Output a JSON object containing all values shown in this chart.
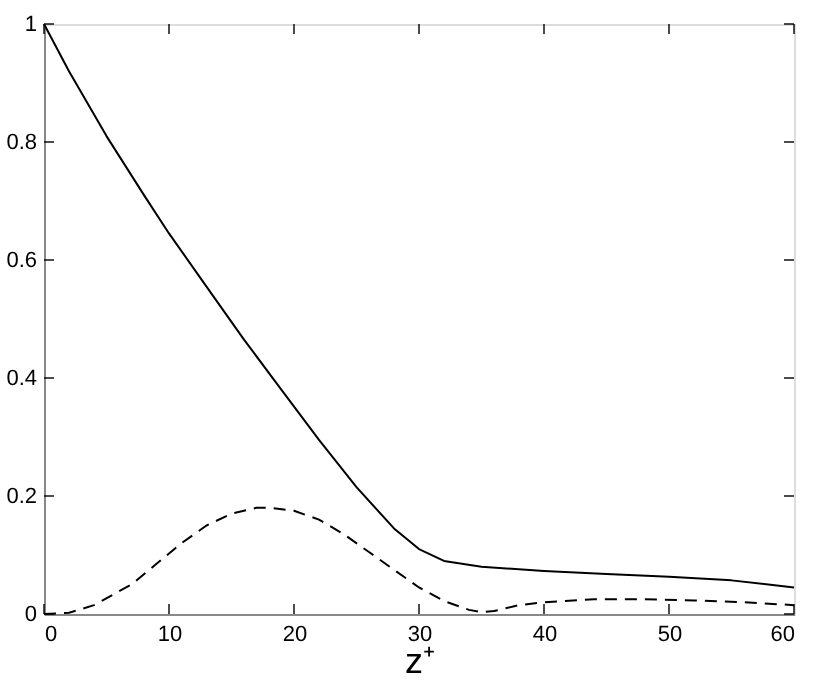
{
  "chart_data": {
    "type": "line",
    "xlabel": "z⁺",
    "xlim": [
      0,
      60
    ],
    "ylim": [
      0,
      1
    ],
    "xticks": [
      0,
      10,
      20,
      30,
      40,
      50,
      60
    ],
    "yticks": [
      0,
      0.2,
      0.4,
      0.6,
      0.8,
      1
    ],
    "grid": false,
    "marker": "none",
    "series": [
      {
        "color": "#000000",
        "line_style": "solid",
        "x": [
          0,
          2,
          5,
          8,
          10,
          13,
          16,
          19,
          22,
          25,
          28,
          30,
          32,
          35,
          40,
          45,
          50,
          55,
          60
        ],
        "values": [
          1.0,
          0.92,
          0.81,
          0.71,
          0.645,
          0.555,
          0.465,
          0.38,
          0.295,
          0.215,
          0.145,
          0.11,
          0.09,
          0.08,
          0.073,
          0.068,
          0.063,
          0.057,
          0.045
        ]
      },
      {
        "color": "#000000",
        "line_style": "dashed",
        "x": [
          0,
          2,
          4,
          7,
          9,
          11,
          13,
          15,
          17,
          18,
          20,
          22,
          24,
          26,
          28,
          30,
          32,
          34,
          35,
          36,
          38,
          40,
          44,
          48,
          52,
          56,
          60
        ],
        "values": [
          0,
          0.002,
          0.015,
          0.05,
          0.085,
          0.12,
          0.15,
          0.17,
          0.18,
          0.18,
          0.175,
          0.16,
          0.135,
          0.105,
          0.075,
          0.045,
          0.022,
          0.007,
          0.003,
          0.005,
          0.015,
          0.02,
          0.025,
          0.025,
          0.023,
          0.02,
          0.015
        ]
      }
    ]
  }
}
